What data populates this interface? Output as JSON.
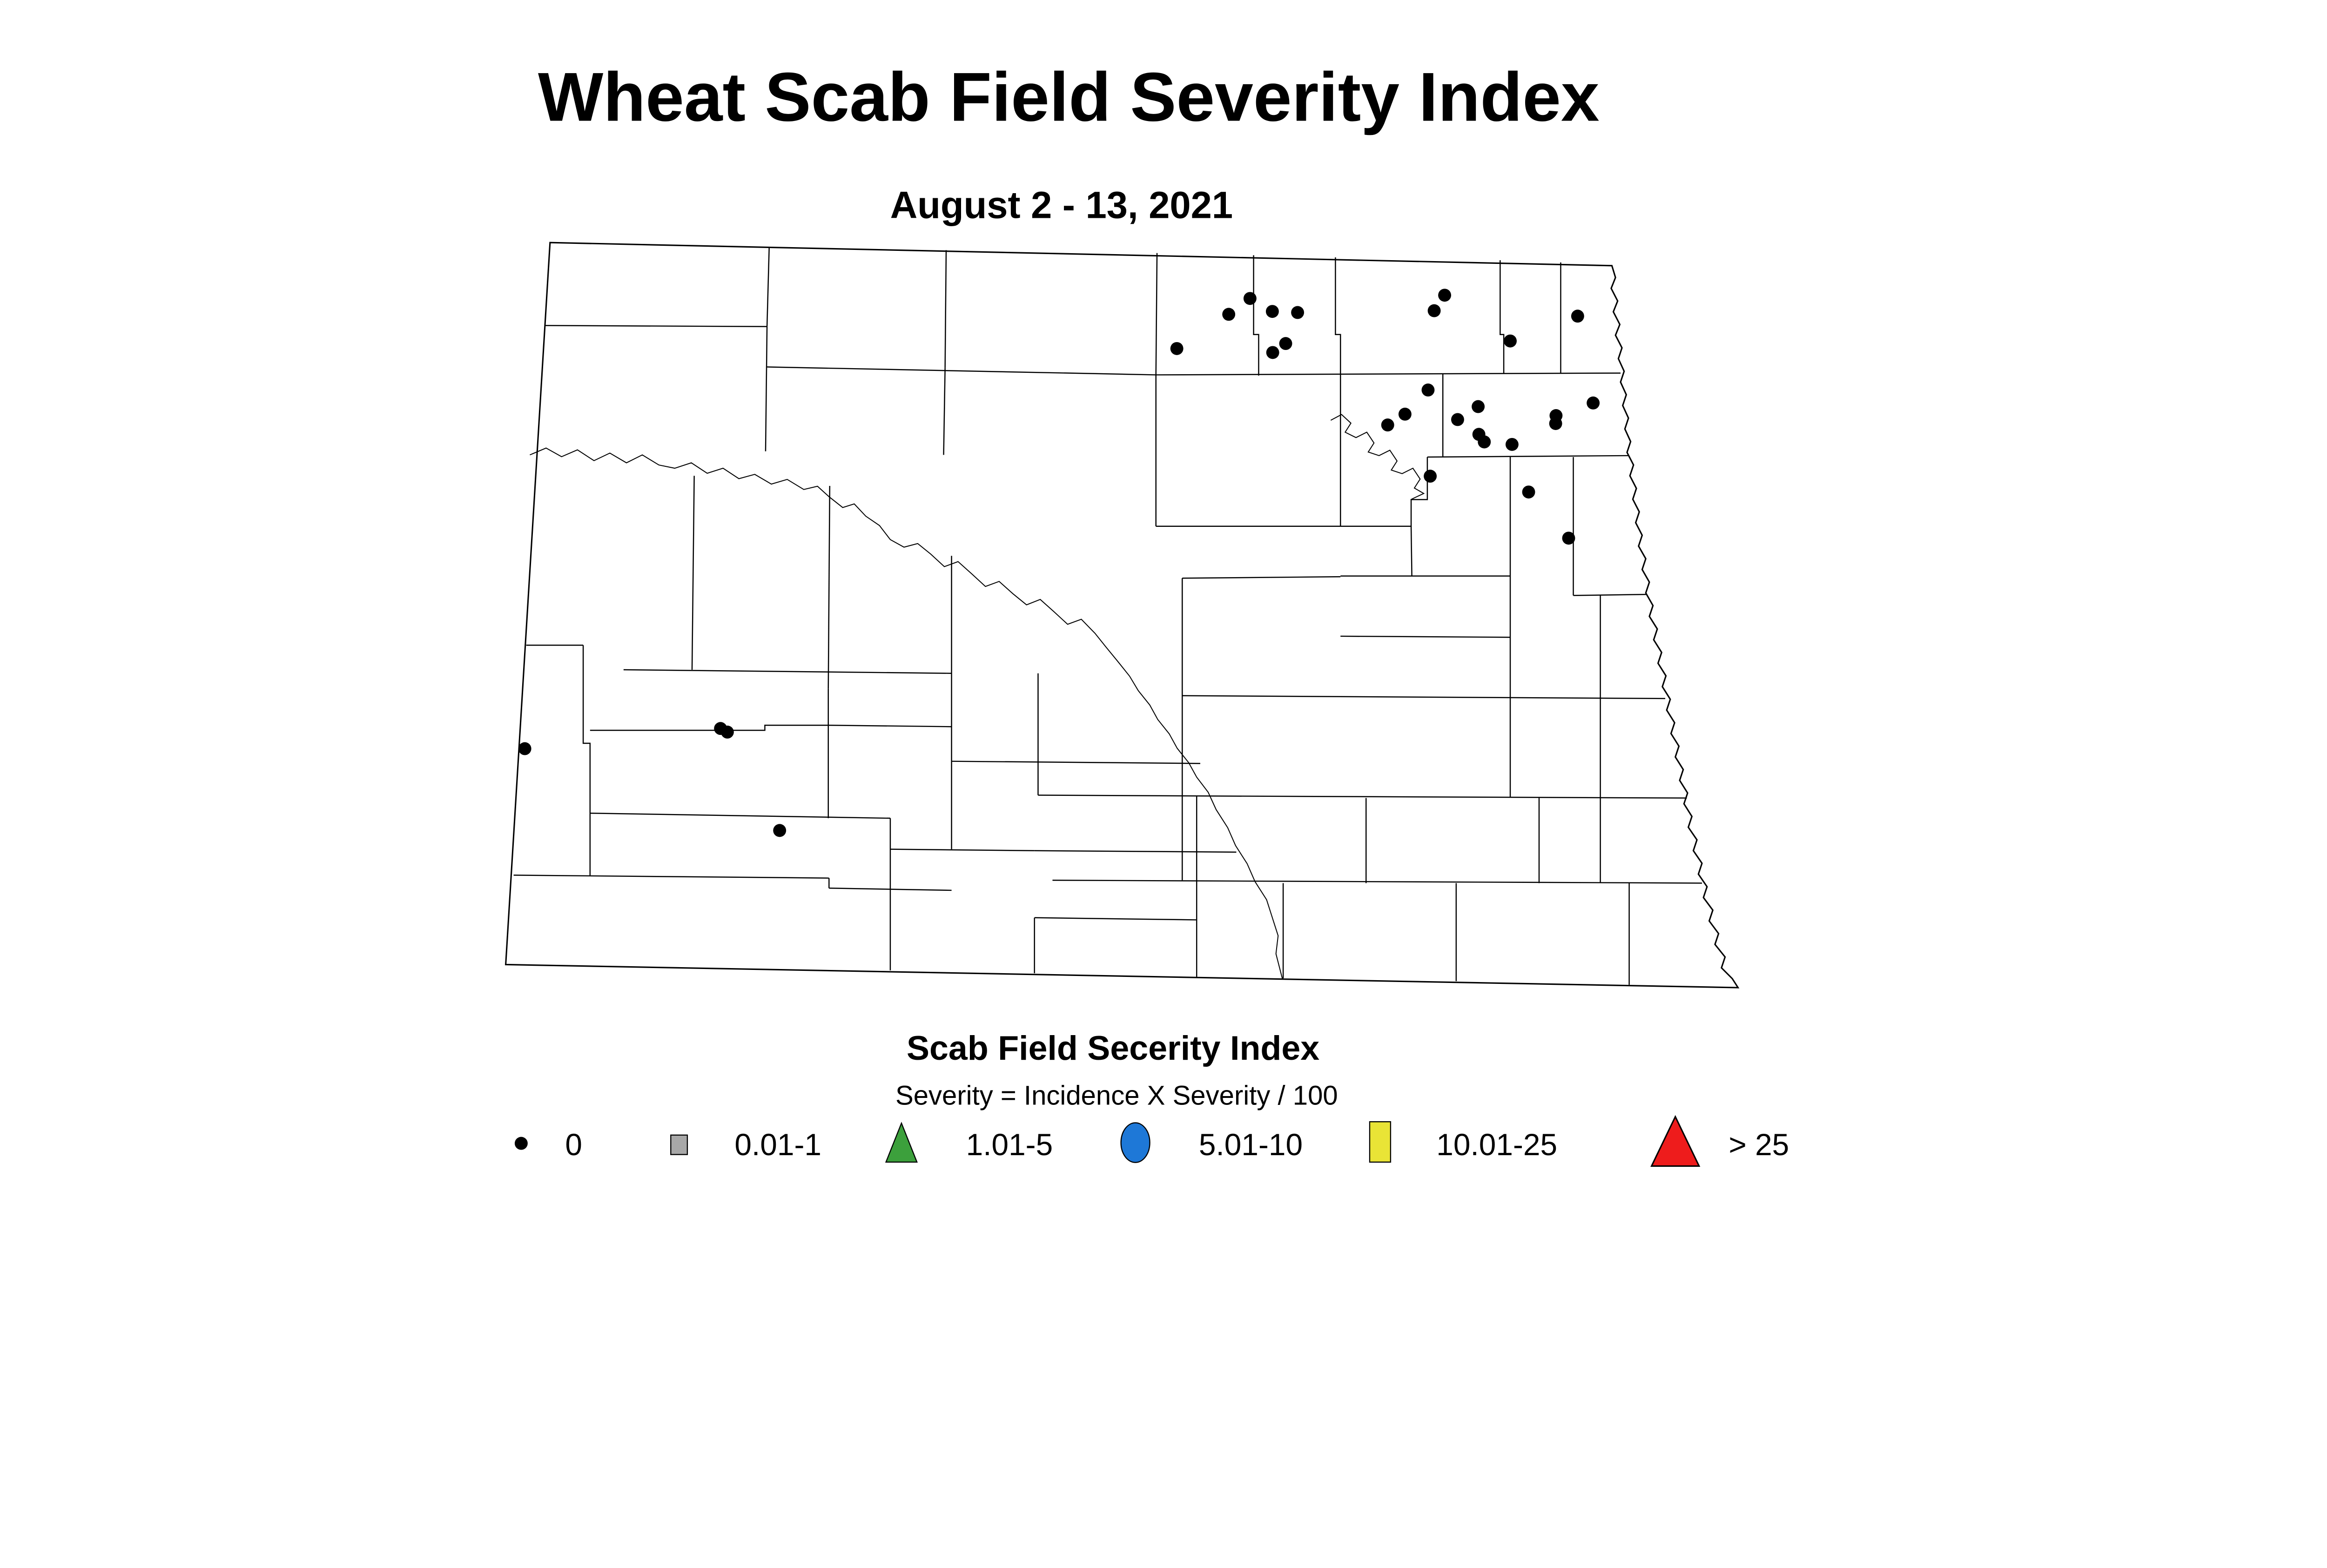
{
  "title": "Wheat Scab Field Severity Index",
  "subtitle": "August 2 - 13, 2021",
  "legend": {
    "title": "Scab Field Secerity Index",
    "formula": "Severity = Incidence X Severity / 100",
    "items": [
      {
        "label": "0",
        "symbol": "dot",
        "color": "#000000",
        "sx": 1446,
        "lx": 1568
      },
      {
        "label": "0.01-1",
        "symbol": "square",
        "color": "#A8A8A8",
        "sx": 1884,
        "lx": 2038
      },
      {
        "label": "1.01-5",
        "symbol": "triangle",
        "color": "#3CA03C",
        "sx": 2501,
        "lx": 2680
      },
      {
        "label": "5.01-10",
        "symbol": "circle",
        "color": "#1E78D7",
        "sx": 3150,
        "lx": 3326
      },
      {
        "label": "10.01-25",
        "symbol": "rect",
        "color": "#E9E436",
        "sx": 3829,
        "lx": 3985
      },
      {
        "label": "> 25",
        "symbol": "triangle-large",
        "color": "#EE1C1C",
        "sx": 4648,
        "lx": 4796
      }
    ]
  },
  "map": {
    "region": "North Dakota counties",
    "dot_radius": 18,
    "dot_color": "#000000"
  },
  "chart_data": {
    "type": "scatter",
    "title": "Wheat Scab Field Severity Index",
    "subtitle": "August 2 - 13, 2021",
    "region": "North Dakota county map",
    "legend_title": "Scab Field Secerity Index",
    "legend_note": "Severity = Incidence X Severity / 100",
    "categories": [
      "0",
      "0.01-1",
      "1.01-5",
      "5.01-10",
      "10.01-25",
      "> 25"
    ],
    "series": [
      {
        "name": "0",
        "marker": "black-dot",
        "points": [
          [
            3468,
            828
          ],
          [
            3409,
            872
          ],
          [
            3530,
            864
          ],
          [
            3600,
            867
          ],
          [
            3567,
            953
          ],
          [
            3531,
            978
          ],
          [
            3265,
            967
          ],
          [
            4008,
            819
          ],
          [
            3979,
            862
          ],
          [
            4377,
            877
          ],
          [
            4190,
            946
          ],
          [
            3962,
            1082
          ],
          [
            3898,
            1149
          ],
          [
            3850,
            1179
          ],
          [
            4101,
            1128
          ],
          [
            4044,
            1164
          ],
          [
            4103,
            1205
          ],
          [
            4118,
            1226
          ],
          [
            4195,
            1233
          ],
          [
            4420,
            1118
          ],
          [
            4317,
            1153
          ],
          [
            4316,
            1175
          ],
          [
            3968,
            1321
          ],
          [
            4241,
            1365
          ],
          [
            4352,
            1493
          ],
          [
            1456,
            2077
          ],
          [
            1999,
            2021
          ],
          [
            2018,
            2031
          ],
          [
            2163,
            2304
          ]
        ]
      }
    ]
  }
}
